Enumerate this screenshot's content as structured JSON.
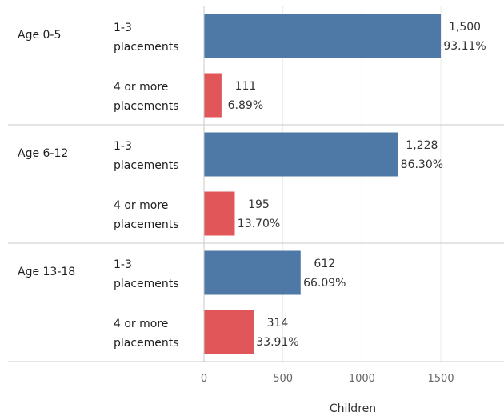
{
  "chart_data": {
    "type": "bar",
    "orientation": "horizontal",
    "xlabel": "Children",
    "xlim": [
      0,
      1900
    ],
    "x_ticks": [
      0,
      500,
      1000,
      1500
    ],
    "x_tick_labels": [
      "0",
      "500",
      "1000",
      "1500"
    ],
    "grid": true,
    "colors": {
      "1-3 placements": "#4e79a7",
      "4 or more placements": "#e15759"
    },
    "groups": [
      {
        "label": "Age 0-5",
        "bars": [
          {
            "label": [
              "1-3",
              "placements"
            ],
            "value": 1500,
            "value_label": "1,500",
            "pct_label": "93.11%"
          },
          {
            "label": [
              "4 or more",
              "placements"
            ],
            "value": 111,
            "value_label": "111",
            "pct_label": "6.89%"
          }
        ]
      },
      {
        "label": "Age 6-12",
        "bars": [
          {
            "label": [
              "1-3",
              "placements"
            ],
            "value": 1228,
            "value_label": "1,228",
            "pct_label": "86.30%"
          },
          {
            "label": [
              "4 or more",
              "placements"
            ],
            "value": 195,
            "value_label": "195",
            "pct_label": "13.70%"
          }
        ]
      },
      {
        "label": "Age 13-18",
        "bars": [
          {
            "label": [
              "1-3",
              "placements"
            ],
            "value": 612,
            "value_label": "612",
            "pct_label": "66.09%"
          },
          {
            "label": [
              "4 or more",
              "placements"
            ],
            "value": 314,
            "value_label": "314",
            "pct_label": "33.91%"
          }
        ]
      }
    ]
  }
}
